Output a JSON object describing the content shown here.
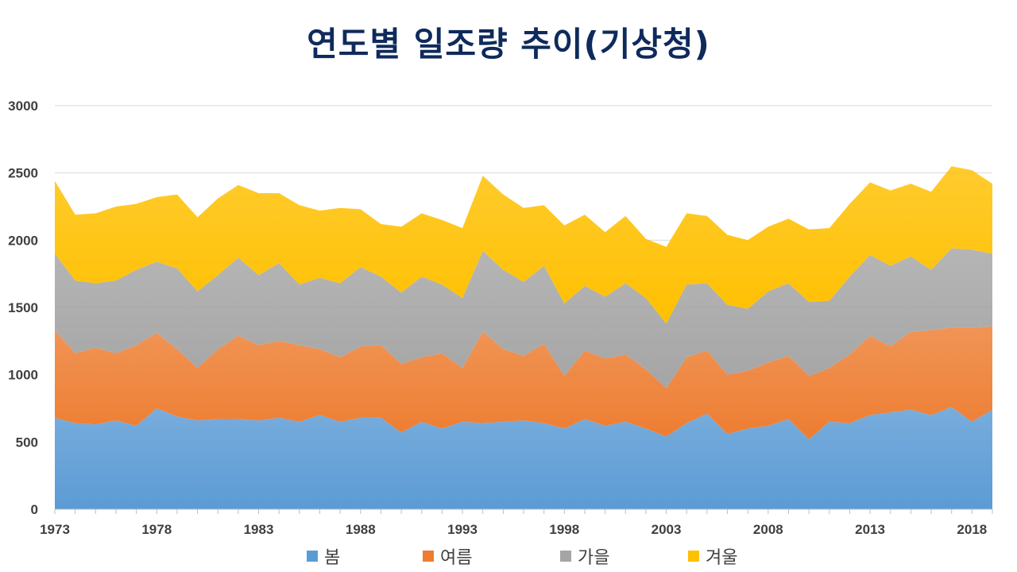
{
  "chart_data": {
    "type": "area",
    "stacked": true,
    "title": "연도별 일조량 추이(기상청)",
    "xlabel": "",
    "ylabel": "",
    "ylim": [
      0,
      3000
    ],
    "y_ticks": [
      0,
      500,
      1000,
      1500,
      2000,
      2500,
      3000
    ],
    "x_tick_labels": [
      "1973",
      "1978",
      "1983",
      "1988",
      "1993",
      "1998",
      "2003",
      "2008",
      "2013",
      "2018"
    ],
    "grid": true,
    "legend_position": "bottom",
    "x": [
      1973,
      1974,
      1975,
      1976,
      1977,
      1978,
      1979,
      1980,
      1981,
      1982,
      1983,
      1984,
      1985,
      1986,
      1987,
      1988,
      1989,
      1990,
      1991,
      1992,
      1993,
      1994,
      1995,
      1996,
      1997,
      1998,
      1999,
      2000,
      2001,
      2002,
      2003,
      2004,
      2005,
      2006,
      2007,
      2008,
      2009,
      2010,
      2011,
      2012,
      2013,
      2014,
      2015,
      2016,
      2017,
      2018,
      2019
    ],
    "series": [
      {
        "name": "봄",
        "color": "#5b9bd5",
        "values": [
          680,
          640,
          630,
          660,
          620,
          750,
          690,
          660,
          670,
          670,
          660,
          680,
          650,
          700,
          650,
          680,
          680,
          570,
          650,
          600,
          650,
          640,
          650,
          660,
          640,
          600,
          670,
          620,
          650,
          600,
          540,
          640,
          710,
          560,
          600,
          620,
          670,
          520,
          650,
          640,
          700,
          720,
          740,
          700,
          760,
          650,
          740
        ]
      },
      {
        "name": "여름",
        "color": "#ed7d31",
        "values": [
          650,
          520,
          570,
          500,
          600,
          560,
          500,
          390,
          520,
          620,
          560,
          570,
          570,
          490,
          480,
          530,
          540,
          510,
          480,
          560,
          400,
          680,
          540,
          480,
          590,
          390,
          510,
          500,
          500,
          440,
          360,
          490,
          470,
          440,
          430,
          470,
          470,
          470,
          400,
          510,
          590,
          490,
          580,
          630,
          590,
          700,
          620
        ]
      },
      {
        "name": "가을",
        "color": "#a5a5a5",
        "values": [
          570,
          540,
          480,
          540,
          560,
          530,
          600,
          570,
          550,
          580,
          520,
          580,
          450,
          530,
          550,
          590,
          510,
          530,
          600,
          510,
          520,
          600,
          590,
          550,
          580,
          540,
          480,
          460,
          530,
          530,
          480,
          540,
          500,
          520,
          460,
          530,
          540,
          550,
          500,
          580,
          600,
          600,
          560,
          450,
          590,
          580,
          540
        ]
      },
      {
        "name": "겨울",
        "color": "#ffc000",
        "values": [
          540,
          490,
          520,
          550,
          490,
          480,
          550,
          550,
          570,
          540,
          610,
          520,
          590,
          500,
          560,
          430,
          390,
          490,
          470,
          480,
          520,
          560,
          560,
          550,
          450,
          580,
          530,
          480,
          500,
          440,
          570,
          530,
          500,
          520,
          510,
          480,
          480,
          540,
          540,
          540,
          540,
          560,
          540,
          580,
          610,
          590,
          520
        ]
      }
    ]
  }
}
